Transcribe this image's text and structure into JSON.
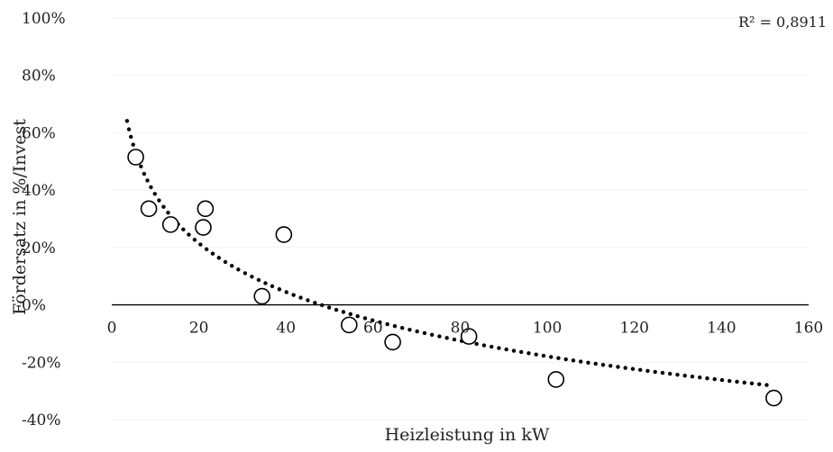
{
  "chart_data": {
    "type": "scatter",
    "xlabel": "Heizleistung in kW",
    "ylabel": "Fördersatz in %/Invest",
    "xlim": [
      0,
      160
    ],
    "ylim": [
      -40,
      100
    ],
    "x_ticks": [
      {
        "value": 0,
        "label": "0"
      },
      {
        "value": 20,
        "label": "20"
      },
      {
        "value": 40,
        "label": "40"
      },
      {
        "value": 60,
        "label": "60"
      },
      {
        "value": 80,
        "label": "80"
      },
      {
        "value": 100,
        "label": "100"
      },
      {
        "value": 120,
        "label": "120"
      },
      {
        "value": 140,
        "label": "140"
      },
      {
        "value": 160,
        "label": "160"
      }
    ],
    "y_ticks": [
      {
        "value": -40,
        "label": "-40%"
      },
      {
        "value": -20,
        "label": "-20%"
      },
      {
        "value": 0,
        "label": "0%"
      },
      {
        "value": 20,
        "label": "20%"
      },
      {
        "value": 40,
        "label": "40%"
      },
      {
        "value": 60,
        "label": "60%"
      },
      {
        "value": 80,
        "label": "80%"
      },
      {
        "value": 100,
        "label": "100%"
      }
    ],
    "grid": true,
    "series": [
      {
        "points": [
          {
            "x": 5.5,
            "y": 51.5
          },
          {
            "x": 8.5,
            "y": 33.5
          },
          {
            "x": 13.5,
            "y": 28
          },
          {
            "x": 21,
            "y": 27
          },
          {
            "x": 21.5,
            "y": 33.5
          },
          {
            "x": 34.5,
            "y": 3
          },
          {
            "x": 39.5,
            "y": 24.5
          },
          {
            "x": 54.5,
            "y": -7
          },
          {
            "x": 64.5,
            "y": -13
          },
          {
            "x": 82,
            "y": -11
          },
          {
            "x": 102,
            "y": -26
          },
          {
            "x": 152,
            "y": -32.5
          }
        ]
      }
    ],
    "trendline": {
      "type": "logarithmic",
      "style": "dotted",
      "x_range": [
        3.5,
        152
      ],
      "points": [
        {
          "x": 3.5,
          "y": 65.5
        },
        {
          "x": 5.5,
          "y": 51.5
        },
        {
          "x": 20,
          "y": 21
        },
        {
          "x": 50,
          "y": -0.5
        },
        {
          "x": 100,
          "y": -17
        },
        {
          "x": 152,
          "y": -29
        }
      ],
      "r2_label": "R² = 0,8911",
      "color": "#000000"
    },
    "colors": {
      "marker_stroke": "#000000",
      "marker_fill": "#ffffff",
      "gridline": "#f0f0f0",
      "text": "#222222"
    }
  }
}
